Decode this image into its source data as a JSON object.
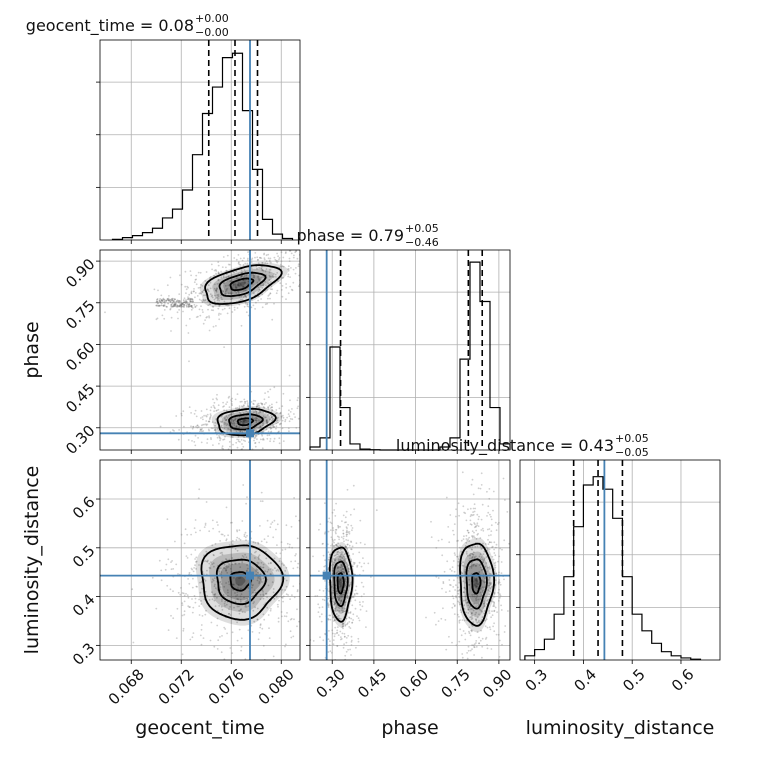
{
  "chart_data": {
    "type": "corner",
    "parameters": [
      {
        "name": "geocent_time",
        "label": "geocent_time",
        "range": [
          0.0655,
          0.0815
        ],
        "ticks": [
          0.068,
          0.072,
          0.076,
          0.08
        ],
        "tick_labels": [
          "0.068",
          "0.072",
          "0.076",
          "0.080"
        ],
        "truth": 0.0775
      },
      {
        "name": "phase",
        "label": "phase",
        "range": [
          0.22,
          0.94
        ],
        "ticks": [
          0.3,
          0.45,
          0.6,
          0.75,
          0.9
        ],
        "tick_labels": [
          "0.30",
          "0.45",
          "0.60",
          "0.75",
          "0.90"
        ],
        "truth": 0.28
      },
      {
        "name": "luminosity_distance",
        "label": "luminosity_distance",
        "range": [
          0.27,
          0.68
        ],
        "ticks": [
          0.3,
          0.4,
          0.5,
          0.6
        ],
        "tick_labels": [
          "0.3",
          "0.4",
          "0.5",
          "0.6"
        ],
        "truth": 0.443
      }
    ],
    "titles": [
      {
        "text": "geocent_time = 0.08",
        "sup": "+0.00",
        "sub": "−0.00"
      },
      {
        "text": "phase = 0.79",
        "sup": "+0.05",
        "sub": "−0.46"
      },
      {
        "text": "luminosity_distance = 0.43",
        "sup": "+0.05",
        "sub": "−0.05"
      }
    ],
    "histograms": [
      {
        "param": "geocent_time",
        "bin_edges": [
          0.0665,
          0.0673,
          0.0681,
          0.0689,
          0.0697,
          0.0705,
          0.0713,
          0.0721,
          0.0729,
          0.0737,
          0.0745,
          0.0753,
          0.0761,
          0.0769,
          0.0777,
          0.0785,
          0.0793,
          0.0801,
          0.0809
        ],
        "counts": [
          0.2,
          0.8,
          1.5,
          2.5,
          4.0,
          7.5,
          10.5,
          17.0,
          29.0,
          43.0,
          52.0,
          62.0,
          63.5,
          44.0,
          24.0,
          7.0,
          2.0,
          0.5
        ],
        "ymax": 68,
        "quantiles": [
          0.0742,
          0.0763,
          0.0781
        ]
      },
      {
        "param": "phase",
        "bin_edges": [
          0.22,
          0.256,
          0.292,
          0.328,
          0.364,
          0.4,
          0.436,
          0.472,
          0.508,
          0.544,
          0.58,
          0.616,
          0.652,
          0.688,
          0.724,
          0.76,
          0.796,
          0.832,
          0.868,
          0.904,
          0.94
        ],
        "counts": [
          1.0,
          4.0,
          34.0,
          14.0,
          2.0,
          0.3,
          0.1,
          0.0,
          0.0,
          0.0,
          0.0,
          0.0,
          0.0,
          1.0,
          4.0,
          30.0,
          62.0,
          49.0,
          14.0,
          2.0
        ],
        "ymax": 66,
        "quantiles": [
          0.33,
          0.79,
          0.84
        ]
      },
      {
        "param": "luminosity_distance",
        "bin_edges": [
          0.28,
          0.3,
          0.32,
          0.34,
          0.36,
          0.38,
          0.4,
          0.42,
          0.44,
          0.46,
          0.48,
          0.5,
          0.52,
          0.54,
          0.56,
          0.58,
          0.6,
          0.62,
          0.64
        ],
        "counts": [
          1.0,
          2.5,
          5.0,
          11.0,
          20.0,
          32.0,
          42.0,
          44.0,
          41.0,
          34.0,
          20.0,
          11.0,
          7.0,
          4.0,
          2.0,
          1.0,
          0.5,
          0.2
        ],
        "ymax": 48,
        "quantiles": [
          0.38,
          0.43,
          0.48
        ]
      }
    ],
    "contours": [
      {
        "x": "geocent_time",
        "y": "phase",
        "modes": [
          {
            "cx": 0.0768,
            "cy": 0.817,
            "sx": 0.0015,
            "sy": 0.035,
            "rho": 0.5,
            "levels": [
              0.6,
              1.2,
              2.0
            ],
            "tail": [
              0.0715,
              0.75
            ]
          },
          {
            "cx": 0.0771,
            "cy": 0.322,
            "sx": 0.0012,
            "sy": 0.025,
            "rho": 0.2,
            "levels": [
              0.5,
              1.1,
              1.9
            ],
            "tail": null
          }
        ]
      },
      {
        "x": "geocent_time",
        "y": "luminosity_distance",
        "modes": [
          {
            "cx": 0.0767,
            "cy": 0.432,
            "sx": 0.0016,
            "sy": 0.038,
            "rho": 0.0,
            "levels": [
              0.5,
              1.2,
              2.0
            ],
            "tail": null
          }
        ]
      },
      {
        "x": "phase",
        "y": "luminosity_distance",
        "modes": [
          {
            "cx": 0.33,
            "cy": 0.428,
            "sx": 0.02,
            "sy": 0.038,
            "rho": 0.0,
            "levels": [
              0.55,
              1.2,
              2.0
            ],
            "tail": null
          },
          {
            "cx": 0.818,
            "cy": 0.428,
            "sx": 0.03,
            "sy": 0.042,
            "rho": 0.0,
            "levels": [
              0.5,
              1.2,
              2.0
            ],
            "tail": null
          }
        ]
      }
    ],
    "truth_color": "#4682b4",
    "line_color": "#000000",
    "grid": true
  }
}
